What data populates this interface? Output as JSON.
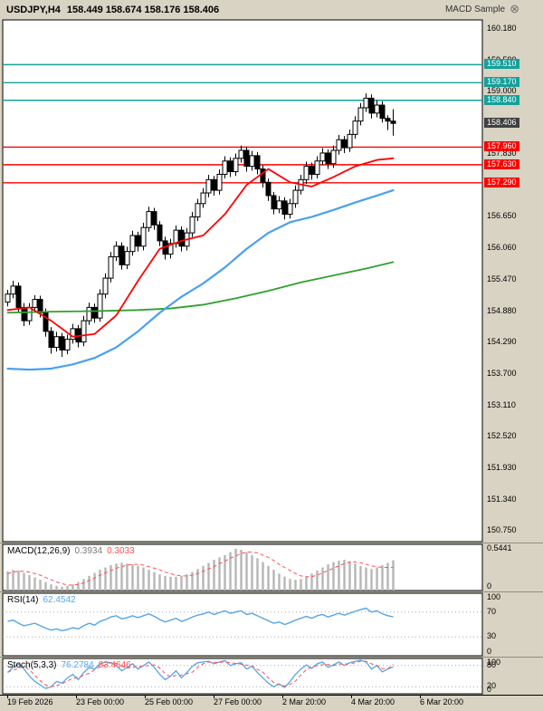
{
  "header": {
    "symbol": "USDJPY,H4",
    "ohlc": "158.449 158.674 158.176 158.406",
    "ea_label": "MACD Sample",
    "ea_close_glyph": "⊗"
  },
  "colors": {
    "background": "#d8d3c3",
    "panel_bg": "#ffffff",
    "frame": "#000000",
    "separator": "#8f8d82",
    "candle_up": "#ffffff",
    "candle_down": "#000000",
    "candle_outline": "#000000",
    "ma_fast": "#ff0000",
    "ma_mid": "#4aa0f0",
    "ma_slow": "#2fa12f",
    "resistance": "#16a09a",
    "support": "#ff0000",
    "current_label_bg": "#404040",
    "macd_hist": "#b6b6b6",
    "macd_signal": "#ff5050",
    "rsi_line": "#56a5e8",
    "stoch_k": "#56a5e8",
    "stoch_d": "#ff5050",
    "grid_dotted": "#a8a8a8"
  },
  "time_axis": {
    "labels": [
      "19 Feb 2026",
      "23 Feb 00:00",
      "25 Feb 00:00",
      "27 Feb 00:00",
      "2 Mar 20:00",
      "4 Mar 20:00",
      "6 Mar 20:00"
    ]
  },
  "chart_data": [
    {
      "type": "candlestick",
      "title": "USDJPY H4",
      "y_range": [
        150.55,
        160.35
      ],
      "axis_labels": [
        "160.180",
        "159.590",
        "159.000",
        "157.830",
        "156.650",
        "156.060",
        "155.470",
        "154.880",
        "154.290",
        "153.700",
        "153.110",
        "152.520",
        "151.930",
        "151.340",
        "150.750"
      ],
      "levels": {
        "resistance": [
          {
            "text": "159.510",
            "value": 159.51
          },
          {
            "text": "159.170",
            "value": 159.17
          },
          {
            "text": "158.840",
            "value": 158.84
          }
        ],
        "support": [
          {
            "text": "157.960",
            "value": 157.96
          },
          {
            "text": "157.630",
            "value": 157.63
          },
          {
            "text": "157.290",
            "value": 157.29
          }
        ],
        "current": {
          "text": "158.406",
          "value": 158.406
        }
      },
      "candles": [
        [
          155.05,
          155.28,
          154.97,
          155.2
        ],
        [
          155.2,
          155.45,
          155.12,
          155.35
        ],
        [
          155.35,
          155.42,
          154.86,
          154.95
        ],
        [
          154.95,
          155.03,
          154.6,
          154.7
        ],
        [
          154.7,
          155.03,
          154.62,
          154.95
        ],
        [
          154.95,
          155.18,
          154.87,
          155.1
        ],
        [
          155.1,
          155.17,
          154.76,
          154.85
        ],
        [
          154.85,
          154.93,
          154.4,
          154.5
        ],
        [
          154.5,
          154.58,
          154.08,
          154.2
        ],
        [
          154.2,
          154.49,
          154.12,
          154.4
        ],
        [
          154.4,
          154.47,
          154.02,
          154.15
        ],
        [
          154.15,
          154.44,
          154.07,
          154.35
        ],
        [
          154.35,
          154.64,
          154.27,
          154.55
        ],
        [
          154.55,
          154.62,
          154.2,
          154.3
        ],
        [
          154.3,
          154.79,
          154.22,
          154.7
        ],
        [
          154.7,
          155.04,
          154.62,
          154.95
        ],
        [
          154.95,
          155.02,
          154.66,
          154.75
        ],
        [
          154.75,
          155.29,
          154.68,
          155.2
        ],
        [
          155.2,
          155.59,
          155.12,
          155.5
        ],
        [
          155.5,
          155.99,
          155.42,
          155.9
        ],
        [
          155.9,
          156.19,
          155.82,
          156.1
        ],
        [
          156.1,
          156.17,
          155.66,
          155.75
        ],
        [
          155.75,
          156.09,
          155.67,
          156.0
        ],
        [
          156.0,
          156.39,
          155.92,
          156.3
        ],
        [
          156.3,
          156.37,
          156.0,
          156.1
        ],
        [
          156.1,
          156.54,
          156.02,
          156.45
        ],
        [
          156.45,
          156.84,
          156.37,
          156.75
        ],
        [
          156.75,
          156.82,
          156.41,
          156.5
        ],
        [
          156.5,
          156.57,
          156.1,
          156.2
        ],
        [
          156.2,
          156.28,
          155.85,
          155.95
        ],
        [
          155.95,
          156.24,
          155.87,
          156.15
        ],
        [
          156.15,
          156.49,
          156.07,
          156.4
        ],
        [
          156.4,
          156.47,
          156.0,
          156.1
        ],
        [
          156.1,
          156.44,
          156.02,
          156.35
        ],
        [
          156.35,
          156.74,
          156.27,
          156.65
        ],
        [
          156.65,
          156.99,
          156.57,
          156.9
        ],
        [
          156.9,
          157.19,
          156.82,
          157.1
        ],
        [
          157.1,
          157.44,
          157.02,
          157.35
        ],
        [
          157.35,
          157.42,
          157.05,
          157.15
        ],
        [
          157.15,
          157.54,
          157.07,
          157.45
        ],
        [
          157.45,
          157.79,
          157.37,
          157.7
        ],
        [
          157.7,
          157.77,
          157.4,
          157.5
        ],
        [
          157.5,
          157.84,
          157.42,
          157.75
        ],
        [
          157.75,
          157.99,
          157.67,
          157.9
        ],
        [
          157.9,
          157.97,
          157.5,
          157.6
        ],
        [
          157.6,
          157.89,
          157.52,
          157.8
        ],
        [
          157.8,
          157.87,
          157.45,
          157.55
        ],
        [
          157.55,
          157.62,
          157.2,
          157.3
        ],
        [
          157.3,
          157.37,
          156.95,
          157.05
        ],
        [
          157.05,
          157.12,
          156.7,
          156.8
        ],
        [
          156.8,
          157.04,
          156.72,
          156.95
        ],
        [
          156.95,
          157.02,
          156.6,
          156.7
        ],
        [
          156.7,
          156.99,
          156.62,
          156.9
        ],
        [
          156.9,
          157.24,
          156.82,
          157.15
        ],
        [
          157.15,
          157.44,
          157.07,
          157.35
        ],
        [
          157.35,
          157.69,
          157.27,
          157.6
        ],
        [
          157.6,
          157.67,
          157.35,
          157.45
        ],
        [
          157.45,
          157.79,
          157.37,
          157.7
        ],
        [
          157.7,
          157.94,
          157.62,
          157.85
        ],
        [
          157.85,
          157.92,
          157.55,
          157.65
        ],
        [
          157.65,
          157.99,
          157.57,
          157.9
        ],
        [
          157.9,
          158.19,
          157.82,
          158.1
        ],
        [
          158.1,
          158.17,
          157.85,
          157.95
        ],
        [
          157.95,
          158.29,
          157.87,
          158.2
        ],
        [
          158.2,
          158.54,
          158.12,
          158.45
        ],
        [
          158.45,
          158.79,
          158.37,
          158.7
        ],
        [
          158.7,
          158.97,
          158.62,
          158.88
        ],
        [
          158.88,
          158.95,
          158.5,
          158.6
        ],
        [
          158.6,
          158.84,
          158.52,
          158.75
        ],
        [
          158.75,
          158.82,
          158.42,
          158.5
        ],
        [
          158.5,
          158.56,
          158.28,
          158.449
        ],
        [
          158.449,
          158.674,
          158.176,
          158.406
        ]
      ],
      "moving_averages": [
        {
          "name": "ma-slow-green",
          "color_key": "ma_slow",
          "width": 1.8,
          "points": [
            [
              0,
              154.85
            ],
            [
              8,
              154.87
            ],
            [
              16,
              154.88
            ],
            [
              24,
              154.9
            ],
            [
              30,
              154.93
            ],
            [
              36,
              155.0
            ],
            [
              42,
              155.12
            ],
            [
              48,
              155.26
            ],
            [
              54,
              155.42
            ],
            [
              60,
              155.55
            ],
            [
              66,
              155.68
            ],
            [
              71,
              155.8
            ]
          ]
        },
        {
          "name": "ma-mid-blue",
          "color_key": "ma_mid",
          "width": 2.2,
          "points": [
            [
              0,
              153.8
            ],
            [
              4,
              153.78
            ],
            [
              8,
              153.8
            ],
            [
              12,
              153.88
            ],
            [
              16,
              154.0
            ],
            [
              20,
              154.2
            ],
            [
              24,
              154.5
            ],
            [
              28,
              154.85
            ],
            [
              32,
              155.15
            ],
            [
              36,
              155.4
            ],
            [
              40,
              155.7
            ],
            [
              44,
              156.05
            ],
            [
              48,
              156.35
            ],
            [
              52,
              156.55
            ],
            [
              56,
              156.65
            ],
            [
              60,
              156.78
            ],
            [
              64,
              156.92
            ],
            [
              68,
              157.05
            ],
            [
              71,
              157.15
            ]
          ]
        },
        {
          "name": "ma-fast-red",
          "color_key": "ma_fast",
          "width": 1.8,
          "points": [
            [
              0,
              154.9
            ],
            [
              4,
              154.95
            ],
            [
              8,
              154.7
            ],
            [
              12,
              154.4
            ],
            [
              16,
              154.45
            ],
            [
              20,
              154.8
            ],
            [
              24,
              155.45
            ],
            [
              28,
              156.05
            ],
            [
              32,
              156.2
            ],
            [
              36,
              156.3
            ],
            [
              40,
              156.7
            ],
            [
              44,
              157.25
            ],
            [
              48,
              157.55
            ],
            [
              52,
              157.3
            ],
            [
              56,
              157.22
            ],
            [
              60,
              157.4
            ],
            [
              64,
              157.6
            ],
            [
              68,
              157.72
            ],
            [
              71,
              157.75
            ]
          ]
        }
      ]
    },
    {
      "type": "bar",
      "name": "MACD(12,26,9)",
      "value_main": "0.3934",
      "value_signal": "0.3033",
      "y_range": [
        0,
        0.6
      ],
      "scale_labels": [
        {
          "text": "0.5441",
          "value": 0.5441
        },
        {
          "text": "0",
          "value": 0
        }
      ],
      "histogram": [
        0.25,
        0.27,
        0.26,
        0.23,
        0.2,
        0.17,
        0.14,
        0.11,
        0.08,
        0.06,
        0.05,
        0.06,
        0.08,
        0.11,
        0.15,
        0.19,
        0.23,
        0.27,
        0.3,
        0.33,
        0.35,
        0.36,
        0.35,
        0.34,
        0.32,
        0.3,
        0.27,
        0.24,
        0.21,
        0.19,
        0.18,
        0.18,
        0.19,
        0.21,
        0.24,
        0.28,
        0.32,
        0.36,
        0.4,
        0.43,
        0.46,
        0.5,
        0.5441,
        0.53,
        0.5,
        0.46,
        0.42,
        0.37,
        0.32,
        0.27,
        0.22,
        0.18,
        0.15,
        0.14,
        0.15,
        0.18,
        0.22,
        0.26,
        0.3,
        0.34,
        0.37,
        0.39,
        0.4,
        0.38,
        0.35,
        0.32,
        0.3,
        0.28,
        0.3,
        0.33,
        0.36,
        0.3934
      ],
      "signal": [
        0.22,
        0.24,
        0.25,
        0.25,
        0.24,
        0.22,
        0.2,
        0.17,
        0.14,
        0.11,
        0.09,
        0.07,
        0.07,
        0.08,
        0.1,
        0.13,
        0.16,
        0.2,
        0.23,
        0.26,
        0.29,
        0.31,
        0.33,
        0.34,
        0.34,
        0.33,
        0.31,
        0.29,
        0.27,
        0.24,
        0.22,
        0.2,
        0.19,
        0.19,
        0.2,
        0.22,
        0.25,
        0.28,
        0.31,
        0.35,
        0.38,
        0.42,
        0.45,
        0.48,
        0.5,
        0.5,
        0.49,
        0.46,
        0.43,
        0.39,
        0.34,
        0.3,
        0.26,
        0.22,
        0.19,
        0.18,
        0.18,
        0.2,
        0.23,
        0.26,
        0.29,
        0.32,
        0.35,
        0.37,
        0.37,
        0.36,
        0.34,
        0.32,
        0.31,
        0.3,
        0.3,
        0.3033
      ]
    },
    {
      "type": "line",
      "name": "RSI(14)",
      "value": "62.4542",
      "y_range": [
        0,
        100
      ],
      "levels": [
        70,
        30
      ],
      "scale_labels": [
        {
          "text": "100",
          "value": 100
        },
        {
          "text": "70",
          "value": 70
        },
        {
          "text": "30",
          "value": 30
        },
        {
          "text": "0",
          "value": 0
        }
      ],
      "values": [
        55,
        57,
        52,
        48,
        50,
        52,
        48,
        44,
        41,
        43,
        40,
        42,
        45,
        43,
        48,
        52,
        49,
        55,
        58,
        62,
        64,
        59,
        61,
        64,
        61,
        64,
        67,
        63,
        58,
        54,
        57,
        60,
        55,
        58,
        62,
        65,
        67,
        70,
        66,
        69,
        72,
        68,
        70,
        72,
        66,
        68,
        64,
        60,
        56,
        52,
        54,
        50,
        53,
        57,
        60,
        63,
        60,
        64,
        66,
        62,
        65,
        68,
        65,
        68,
        71,
        74,
        76,
        70,
        72,
        67,
        64,
        62.4542
      ]
    },
    {
      "type": "line",
      "name": "Stoch(5,3,3)",
      "value_k": "76.2784",
      "value_d": "83.4646",
      "y_range": [
        0,
        100
      ],
      "levels": [
        80,
        20
      ],
      "scale_labels": [
        {
          "text": "100",
          "value": 100
        },
        {
          "text": "80",
          "value": 80
        },
        {
          "text": "20",
          "value": 20
        },
        {
          "text": "0",
          "value": 0
        }
      ],
      "k": [
        60,
        75,
        85,
        70,
        50,
        35,
        25,
        15,
        20,
        35,
        30,
        45,
        55,
        40,
        60,
        75,
        70,
        85,
        90,
        88,
        80,
        65,
        75,
        85,
        70,
        80,
        90,
        75,
        55,
        40,
        50,
        65,
        45,
        60,
        78,
        88,
        90,
        92,
        85,
        90,
        94,
        80,
        85,
        88,
        70,
        78,
        60,
        45,
        30,
        20,
        28,
        18,
        35,
        55,
        70,
        82,
        72,
        85,
        90,
        75,
        82,
        90,
        80,
        88,
        92,
        95,
        90,
        70,
        80,
        62,
        70,
        76.2784
      ],
      "d": [
        62,
        66,
        73,
        77,
        68,
        52,
        37,
        25,
        20,
        23,
        28,
        37,
        43,
        47,
        52,
        58,
        68,
        77,
        82,
        88,
        86,
        78,
        73,
        75,
        77,
        78,
        80,
        82,
        73,
        57,
        48,
        52,
        53,
        57,
        61,
        75,
        85,
        90,
        89,
        89,
        90,
        88,
        86,
        84,
        81,
        79,
        69,
        61,
        45,
        32,
        26,
        22,
        27,
        36,
        53,
        69,
        75,
        80,
        82,
        83,
        80,
        84,
        84,
        85,
        88,
        92,
        92,
        85,
        80,
        71,
        71,
        83.4646
      ]
    }
  ]
}
